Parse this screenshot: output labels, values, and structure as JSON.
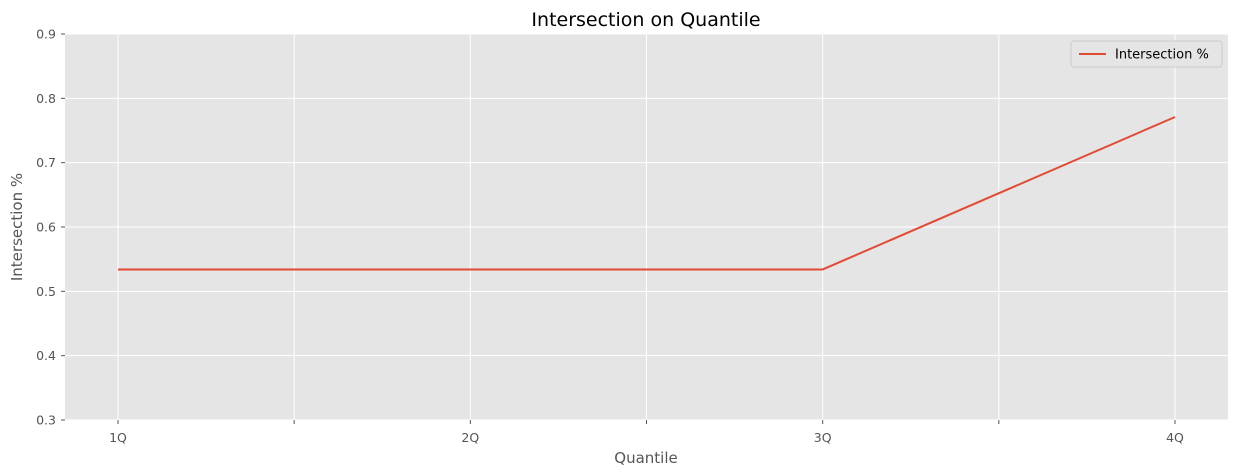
{
  "chart_data": {
    "type": "line",
    "title": "Intersection on Quantile",
    "xlabel": "Quantile",
    "ylabel": "Intersection %",
    "categories": [
      "1Q",
      "2Q",
      "3Q",
      "4Q"
    ],
    "series": [
      {
        "name": "Intersection %",
        "values": [
          0.534,
          0.534,
          0.534,
          0.771
        ],
        "color": "#e24a33"
      }
    ],
    "ylim": [
      0.3,
      0.9
    ],
    "yticks": [
      "0.3",
      "0.4",
      "0.5",
      "0.6",
      "0.7",
      "0.8",
      "0.9"
    ],
    "grid": true,
    "legend_position": "top-right",
    "background_color": "#e5e5e5",
    "grid_color": "#ffffff"
  }
}
